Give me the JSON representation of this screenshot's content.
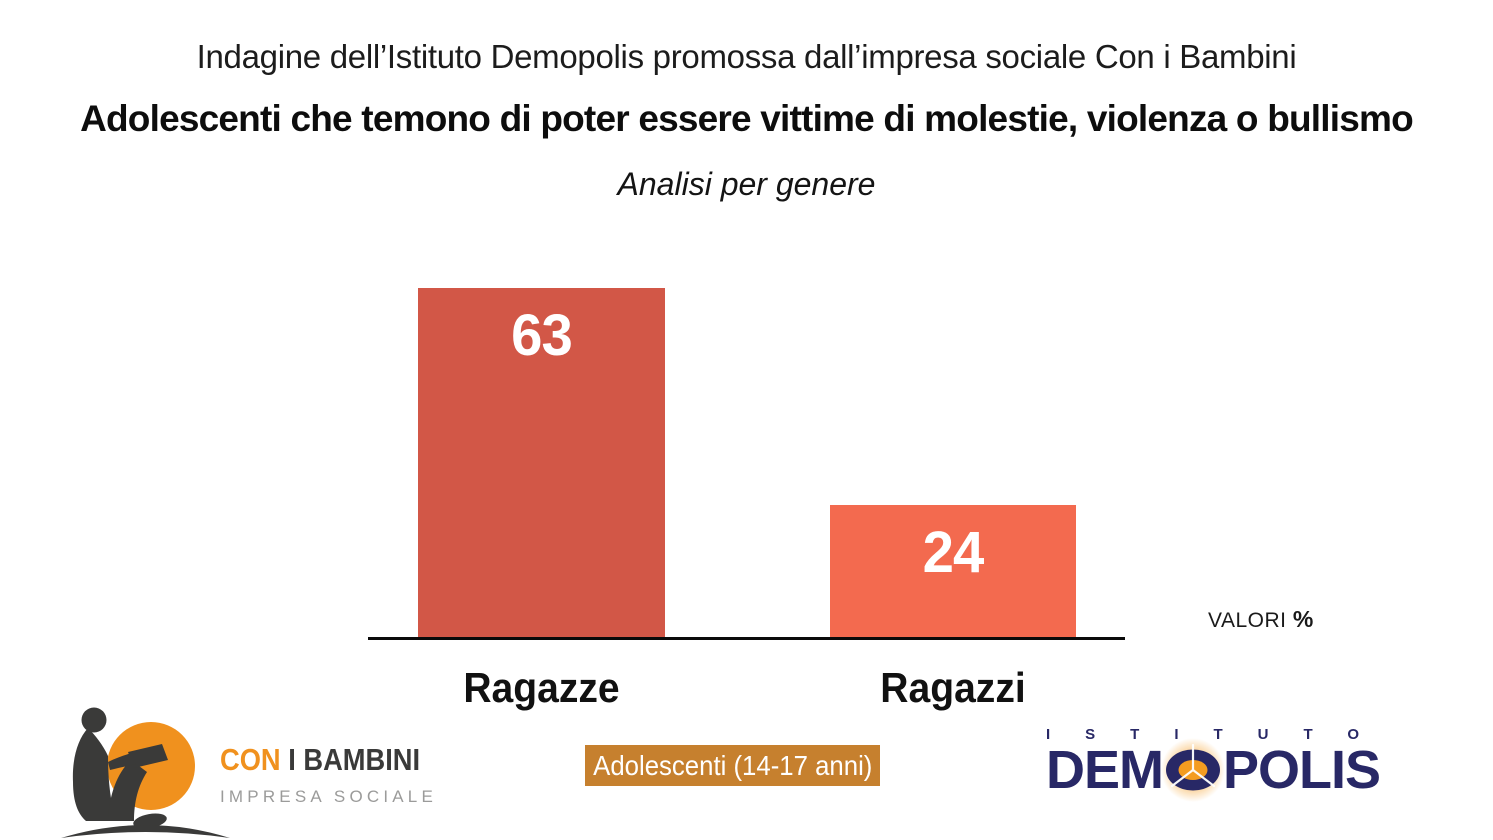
{
  "header": {
    "kicker": "Indagine dell’Istituto Demopolis promossa dall’impresa sociale Con i Bambini",
    "title": "Adolescenti che temono di poter essere vittime di molestie, violenza o bullismo",
    "subtitle": "Analisi per genere"
  },
  "chart_data": {
    "type": "bar",
    "title": "Adolescenti che temono di poter essere vittime di molestie, violenza o bullismo",
    "subtitle": "Analisi per genere",
    "categories": [
      "Ragazze",
      "Ragazzi"
    ],
    "values": [
      63,
      24
    ],
    "unit_label": "VALORI",
    "unit_symbol": "%",
    "value_label_color": "#ffffff",
    "bar_colors": [
      "#d25747",
      "#f36a4f"
    ],
    "ylim": [
      0,
      70
    ],
    "grid": false,
    "legend": false
  },
  "footer": {
    "badge_label": "Adolescenti (14-17 anni)",
    "badge_bg": "#c6802e",
    "brand_colors": {
      "orange": "#f0911e",
      "dark": "#3a3a39",
      "gray": "#9b9b9a",
      "navy": "#282866"
    },
    "con_i_bambini": {
      "word1": "CON",
      "word2": "I BAMBINI",
      "tagline": "IMPRESA SOCIALE"
    },
    "demopolis": {
      "istituto": "ISTITUTO",
      "part1": "DEM",
      "part2": "POLIS"
    }
  }
}
